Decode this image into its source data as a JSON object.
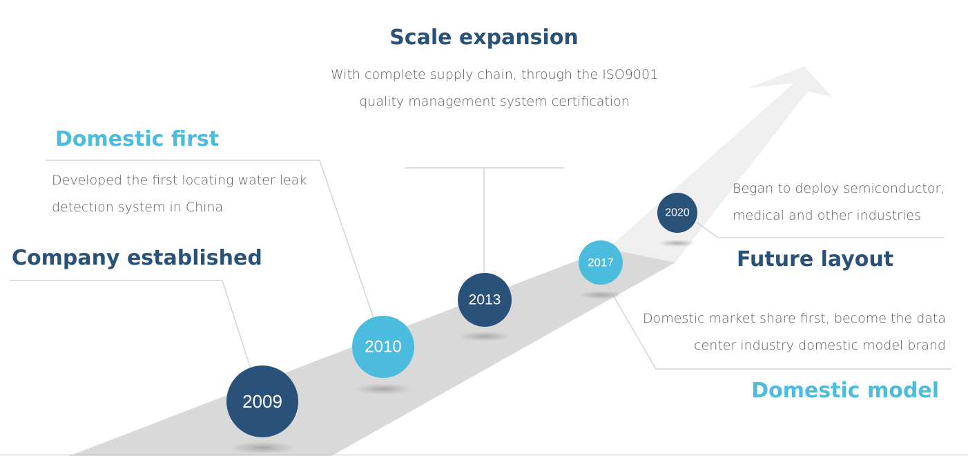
{
  "milestones": [
    {
      "year": "2009",
      "title": "Company established",
      "description": ""
    },
    {
      "year": "2010",
      "title": "Domestic first",
      "description": "Developed the first locating water leak detection system in China"
    },
    {
      "year": "2013",
      "title": "Scale expansion",
      "description": "With complete supply chain, through the ISO9001 quality management system certification"
    },
    {
      "year": "2017",
      "title": "Domestic model",
      "description": "Domestic market share first, become the data center industry domestic model brand"
    },
    {
      "year": "2020",
      "title": "Future layout",
      "description": "Began to deploy semiconductor, medical and other industries"
    }
  ],
  "colors": {
    "dark": "#2a5278",
    "light": "#4cbcde",
    "road": "#d9d9d9",
    "arrow": "#efefef",
    "line": "#d4d4d4"
  }
}
